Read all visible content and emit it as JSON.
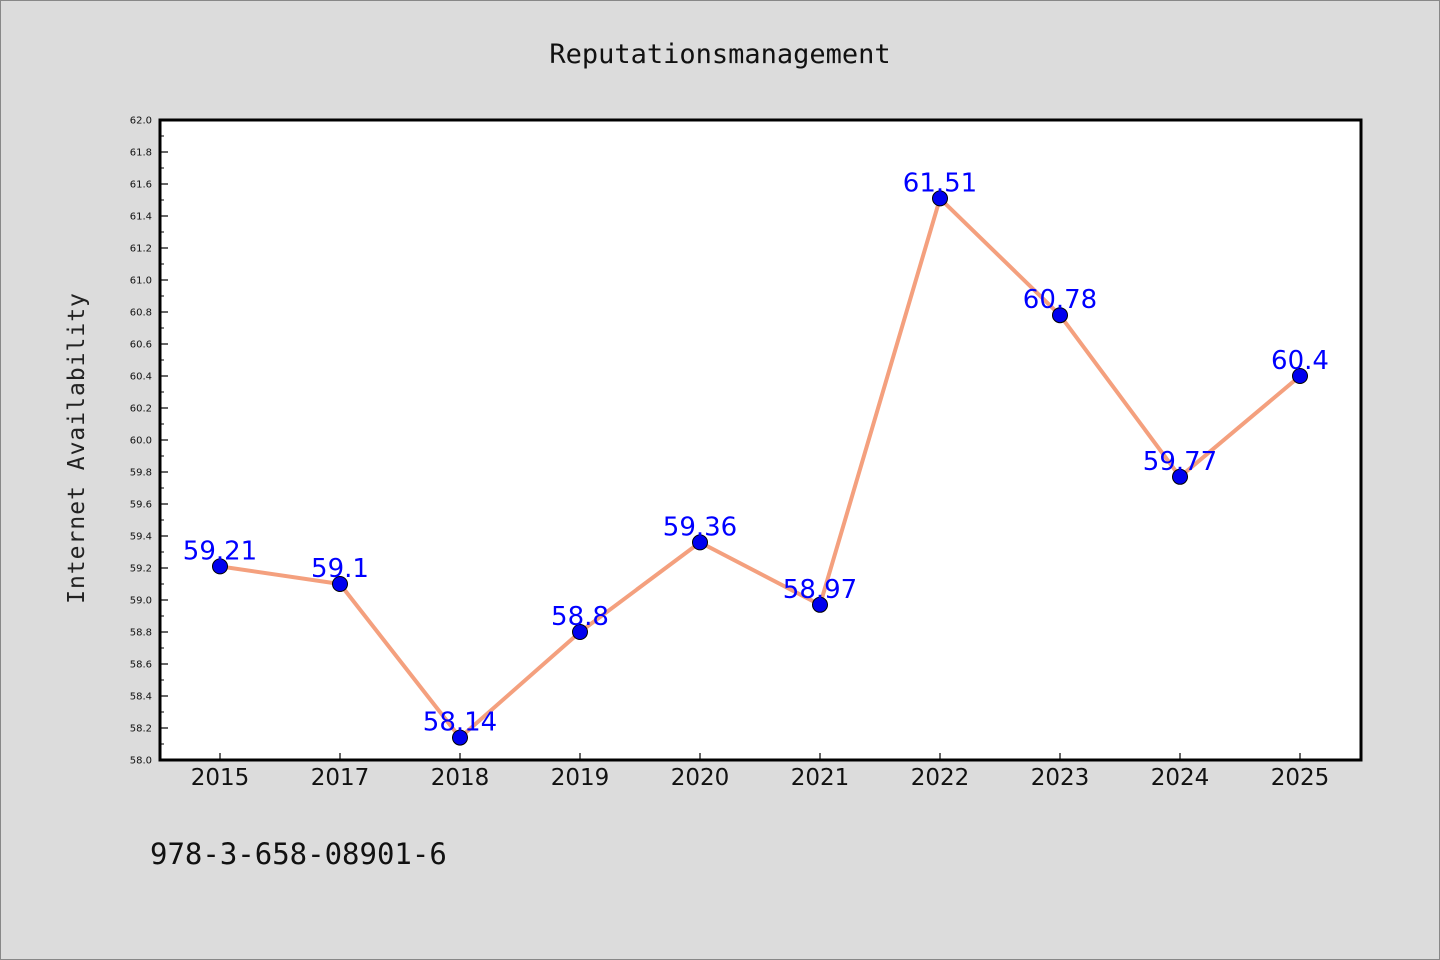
{
  "chart_data": {
    "type": "line",
    "title": "Reputationsmanagement",
    "xlabel": "",
    "ylabel": "Internet Availability",
    "categories": [
      "2015",
      "2017",
      "2018",
      "2019",
      "2020",
      "2021",
      "2022",
      "2023",
      "2024",
      "2025"
    ],
    "series": [
      {
        "values": [
          59.21,
          59.1,
          58.14,
          58.8,
          59.36,
          58.97,
          61.51,
          60.78,
          59.77,
          60.4
        ],
        "labels": [
          "59.21",
          "59.1",
          "58.14",
          "58.8",
          "59.36",
          "58.97",
          "61.51",
          "60.78",
          "59.77",
          "60.4"
        ],
        "line_color": "#f4a07e",
        "marker_color": "#0000ee"
      }
    ],
    "ylim": [
      58.0,
      62.0
    ],
    "yticks": [
      "58.0",
      "58.2",
      "58.4",
      "58.6",
      "58.8",
      "59.0",
      "59.2",
      "59.4",
      "59.6",
      "59.8",
      "60.0",
      "60.2",
      "60.4",
      "60.6",
      "60.8",
      "61.0",
      "61.2",
      "61.4",
      "61.6",
      "61.8",
      "62.0"
    ],
    "grid": false,
    "legend": "none"
  },
  "footer": {
    "text": "978-3-658-08901-6"
  },
  "colors": {
    "background": "#dcdcdc",
    "plot_background": "#ffffff",
    "data_label": "#0000ff"
  }
}
